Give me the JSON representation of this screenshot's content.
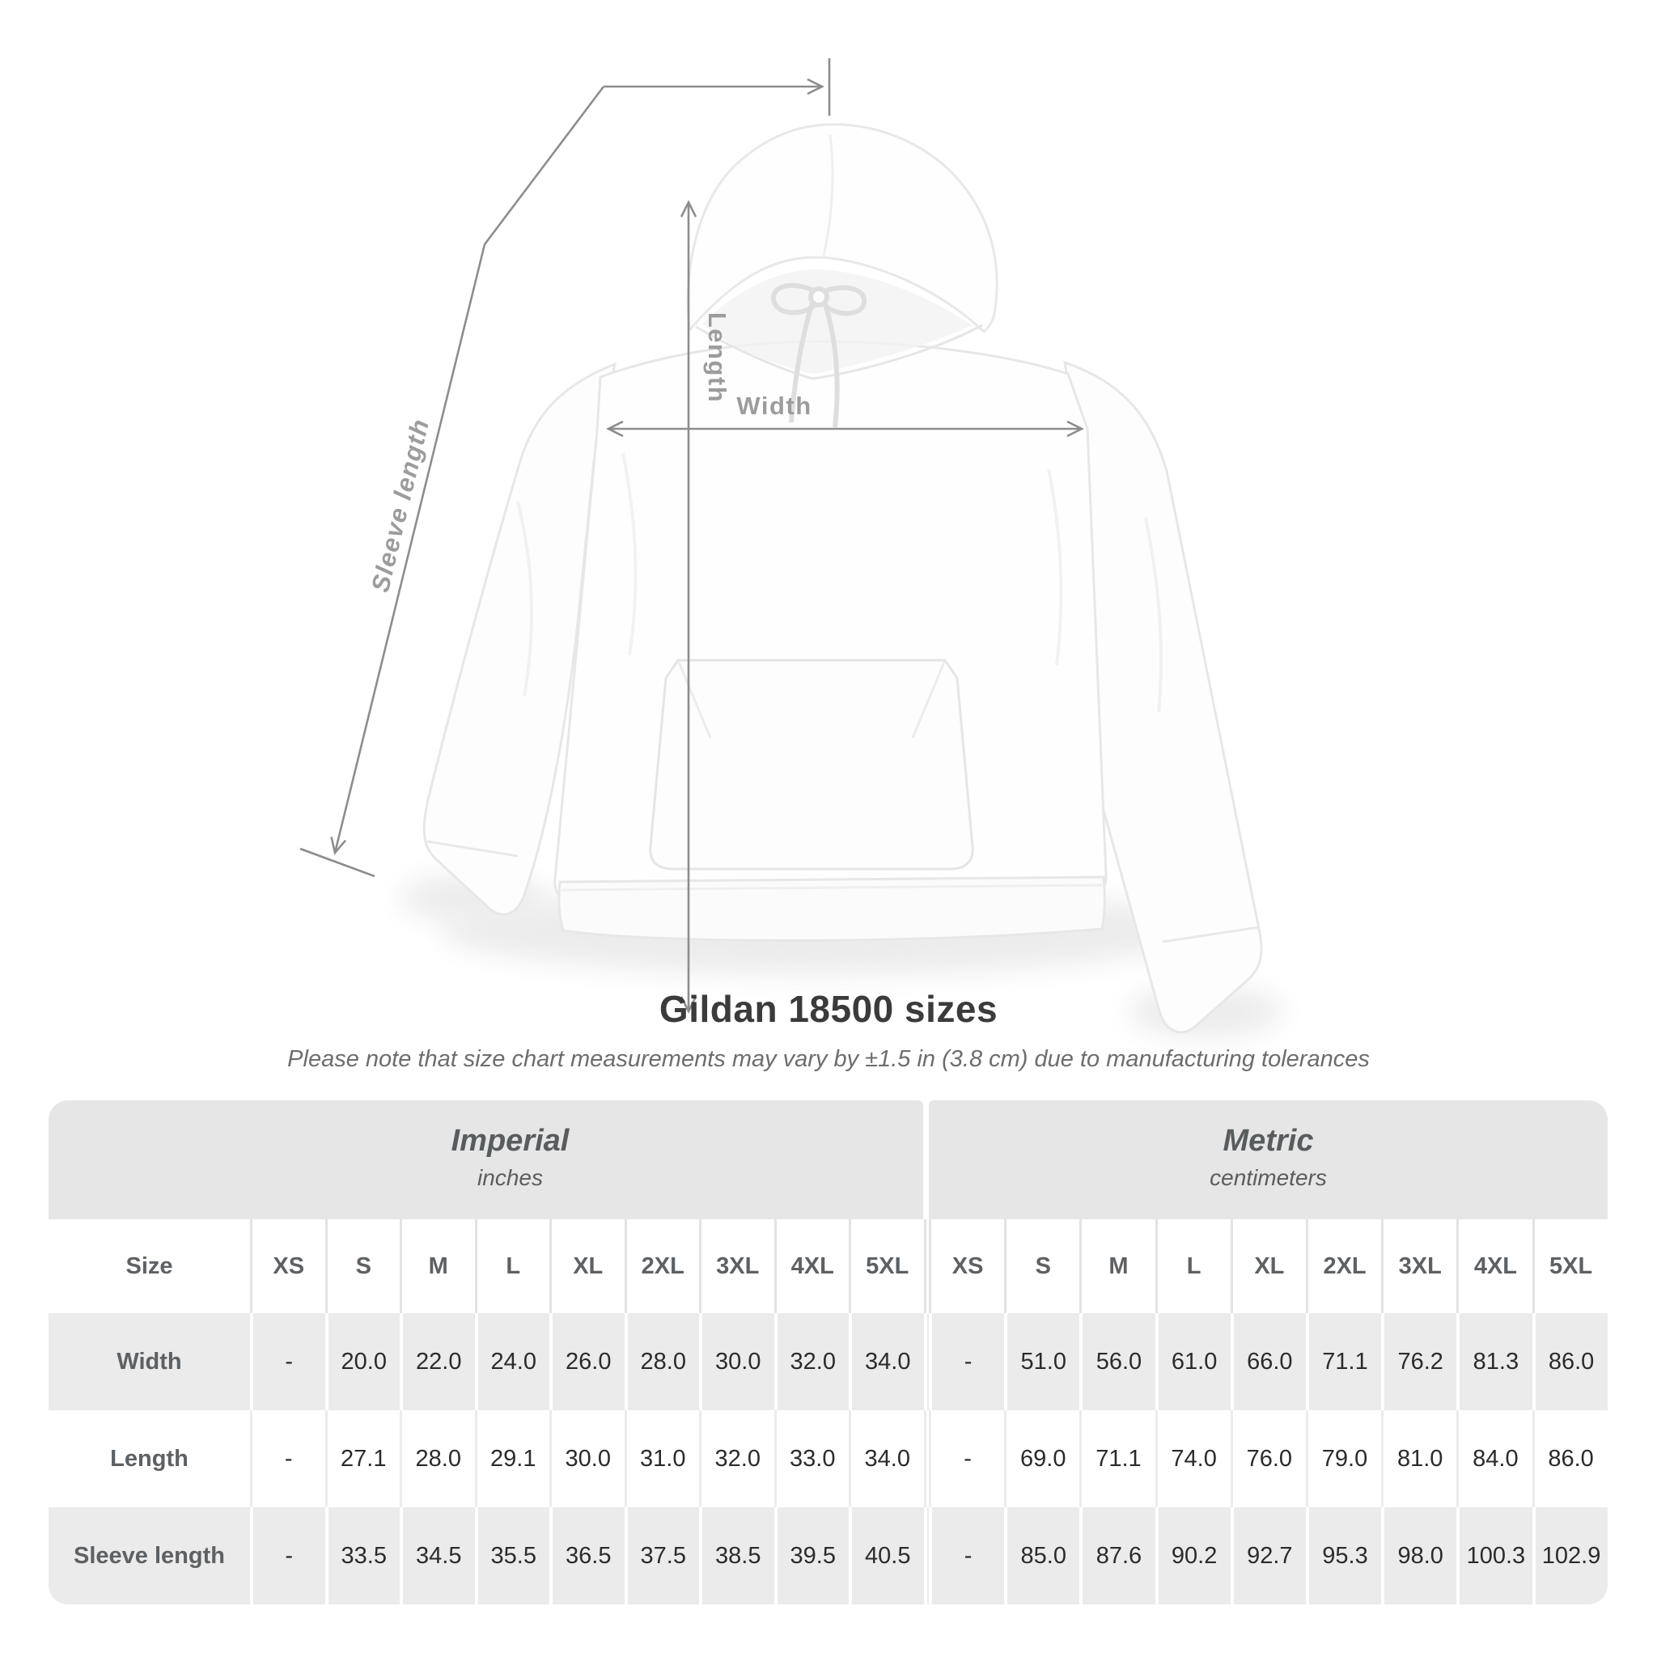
{
  "diagram": {
    "labels": {
      "length": "Length",
      "width": "Width",
      "sleeve_length": "Sleeve length"
    },
    "arrow_color": "#8d8d8d",
    "label_color": "#9c9c9c"
  },
  "chart_data": {
    "type": "table",
    "title": "Gildan 18500 sizes",
    "subtitle": "Please note that size chart measurements may vary by ±1.5 in (3.8 cm) due to manufacturing tolerances",
    "size_header": "Size",
    "sizes": [
      "XS",
      "S",
      "M",
      "L",
      "XL",
      "2XL",
      "3XL",
      "4XL",
      "5XL"
    ],
    "unit_groups": [
      {
        "label": "Imperial",
        "unit": "inches"
      },
      {
        "label": "Metric",
        "unit": "centimeters"
      }
    ],
    "rows": [
      {
        "label": "Width",
        "imperial": [
          "-",
          "20.0",
          "22.0",
          "24.0",
          "26.0",
          "28.0",
          "30.0",
          "32.0",
          "34.0"
        ],
        "metric": [
          "-",
          "51.0",
          "56.0",
          "61.0",
          "66.0",
          "71.1",
          "76.2",
          "81.3",
          "86.0"
        ]
      },
      {
        "label": "Length",
        "imperial": [
          "-",
          "27.1",
          "28.0",
          "29.1",
          "30.0",
          "31.0",
          "32.0",
          "33.0",
          "34.0"
        ],
        "metric": [
          "-",
          "69.0",
          "71.1",
          "74.0",
          "76.0",
          "79.0",
          "81.0",
          "84.0",
          "86.0"
        ]
      },
      {
        "label": "Sleeve length",
        "imperial": [
          "-",
          "33.5",
          "34.5",
          "35.5",
          "36.5",
          "37.5",
          "38.5",
          "39.5",
          "40.5"
        ],
        "metric": [
          "-",
          "85.0",
          "87.6",
          "90.2",
          "92.7",
          "95.3",
          "98.0",
          "100.3",
          "102.9"
        ]
      }
    ],
    "colors": {
      "band_bg": "#e6e6e6",
      "row_alt_bg": "#ebebeb",
      "row_bg": "#ffffff",
      "header_text": "#5d6164",
      "value_text": "#2b2b2b",
      "title_text": "#3b3b3b",
      "subtitle_text": "#6d6d6d"
    }
  }
}
